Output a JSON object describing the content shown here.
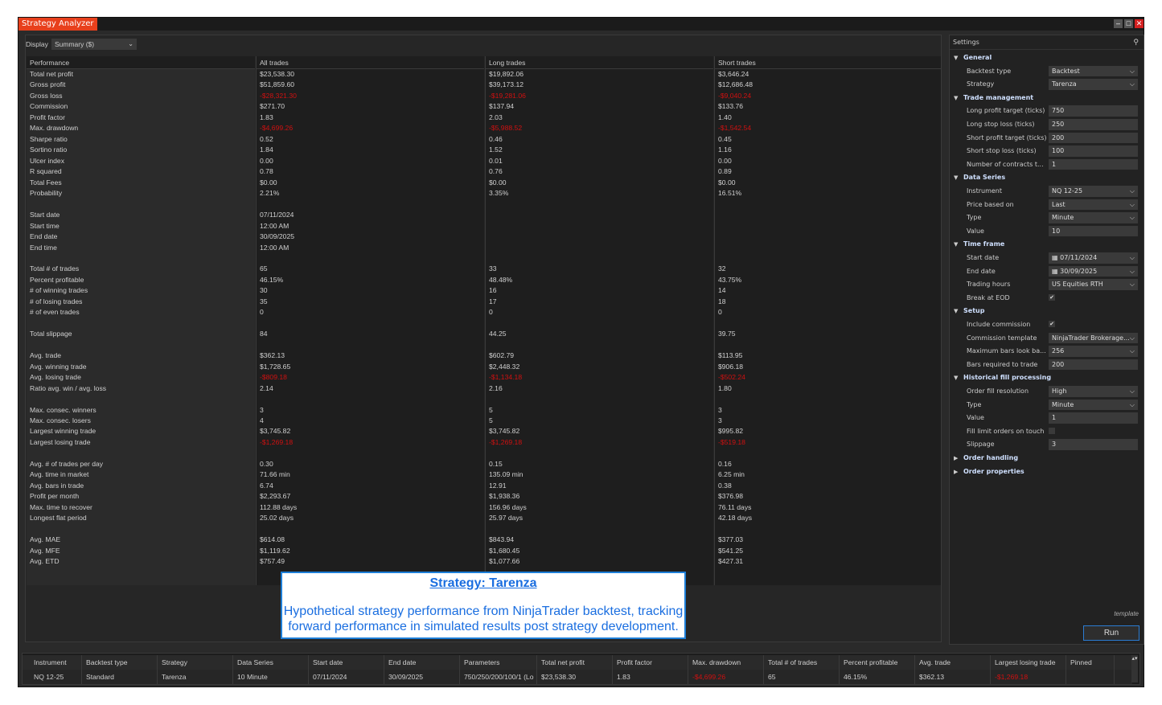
{
  "window": {
    "title": "Strategy Analyzer",
    "controls": [
      "minimize",
      "maximize",
      "close"
    ]
  },
  "display": {
    "label": "Display",
    "value": "Summary ($)"
  },
  "performance": {
    "headers": [
      "Performance",
      "All trades",
      "Long trades",
      "Short trades"
    ],
    "rows": [
      [
        "Total net profit",
        "$23,538.30",
        "$19,892.06",
        "$3,646.24"
      ],
      [
        "Gross profit",
        "$51,859.60",
        "$39,173.12",
        "$12,686.48"
      ],
      [
        "Gross loss",
        "-$28,321.30",
        "-$19,281.06",
        "-$9,040.24"
      ],
      [
        "Commission",
        "$271.70",
        "$137.94",
        "$133.76"
      ],
      [
        "Profit factor",
        "1.83",
        "2.03",
        "1.40"
      ],
      [
        "Max. drawdown",
        "-$4,699.26",
        "-$5,988.52",
        "-$1,542.54"
      ],
      [
        "Sharpe ratio",
        "0.52",
        "0.46",
        "0.45"
      ],
      [
        "Sortino ratio",
        "1.84",
        "1.52",
        "1.16"
      ],
      [
        "Ulcer index",
        "0.00",
        "0.01",
        "0.00"
      ],
      [
        "R squared",
        "0.78",
        "0.76",
        "0.89"
      ],
      [
        "Total Fees",
        "$0.00",
        "$0.00",
        "$0.00"
      ],
      [
        "Probability",
        "2.21%",
        "3.35%",
        "16.51%"
      ],
      [
        "",
        "",
        "",
        ""
      ],
      [
        "Start date",
        "07/11/2024",
        "",
        ""
      ],
      [
        "Start time",
        "12:00 AM",
        "",
        ""
      ],
      [
        "End date",
        "30/09/2025",
        "",
        ""
      ],
      [
        "End time",
        "12:00 AM",
        "",
        ""
      ],
      [
        "",
        "",
        "",
        ""
      ],
      [
        "Total # of trades",
        "65",
        "33",
        "32"
      ],
      [
        "Percent profitable",
        "46.15%",
        "48.48%",
        "43.75%"
      ],
      [
        "# of winning trades",
        "30",
        "16",
        "14"
      ],
      [
        "# of losing trades",
        "35",
        "17",
        "18"
      ],
      [
        "# of even trades",
        "0",
        "0",
        "0"
      ],
      [
        "",
        "",
        "",
        ""
      ],
      [
        "Total slippage",
        "84",
        "44.25",
        "39.75"
      ],
      [
        "",
        "",
        "",
        ""
      ],
      [
        "Avg. trade",
        "$362.13",
        "$602.79",
        "$113.95"
      ],
      [
        "Avg. winning trade",
        "$1,728.65",
        "$2,448.32",
        "$906.18"
      ],
      [
        "Avg. losing trade",
        "-$809.18",
        "-$1,134.18",
        "-$502.24"
      ],
      [
        "Ratio avg. win / avg. loss",
        "2.14",
        "2.16",
        "1.80"
      ],
      [
        "",
        "",
        "",
        ""
      ],
      [
        "Max. consec. winners",
        "3",
        "5",
        "3"
      ],
      [
        "Max. consec. losers",
        "4",
        "5",
        "3"
      ],
      [
        "Largest winning trade",
        "$3,745.82",
        "$3,745.82",
        "$995.82"
      ],
      [
        "Largest losing trade",
        "-$1,269.18",
        "-$1,269.18",
        "-$519.18"
      ],
      [
        "",
        "",
        "",
        ""
      ],
      [
        "Avg. # of trades per day",
        "0.30",
        "0.15",
        "0.16"
      ],
      [
        "Avg. time in market",
        "71.66 min",
        "135.09 min",
        "6.25 min"
      ],
      [
        "Avg. bars in trade",
        "6.74",
        "12.91",
        "0.38"
      ],
      [
        "Profit per month",
        "$2,293.67",
        "$1,938.36",
        "$376.98"
      ],
      [
        "Max. time to recover",
        "112.88 days",
        "156.96 days",
        "76.11 days"
      ],
      [
        "Longest flat period",
        "25.02 days",
        "25.97 days",
        "42.18 days"
      ],
      [
        "",
        "",
        "",
        ""
      ],
      [
        "Avg. MAE",
        "$614.08",
        "$843.94",
        "$377.03"
      ],
      [
        "Avg. MFE",
        "$1,119.62",
        "$1,680.45",
        "$541.25"
      ],
      [
        "Avg. ETD",
        "$757.49",
        "$1,077.66",
        "$427.31"
      ]
    ]
  },
  "note": {
    "title": "Strategy: Tarenza",
    "body": "Hypothetical strategy performance from NinjaTrader backtest, tracking forward performance in simulated results post strategy development."
  },
  "settings": {
    "title": "Settings",
    "items": [
      {
        "kind": "category",
        "label": "General",
        "expanded": true
      },
      {
        "kind": "select",
        "label": "Backtest type",
        "value": "Backtest"
      },
      {
        "kind": "select",
        "label": "Strategy",
        "value": "Tarenza"
      },
      {
        "kind": "category",
        "label": "Trade management",
        "expanded": true
      },
      {
        "kind": "text",
        "label": "Long profit target (ticks)",
        "value": "750"
      },
      {
        "kind": "text",
        "label": "Long stop loss (ticks)",
        "value": "250"
      },
      {
        "kind": "text",
        "label": "Short profit target (ticks)",
        "value": "200"
      },
      {
        "kind": "text",
        "label": "Short stop loss (ticks)",
        "value": "100"
      },
      {
        "kind": "text",
        "label": "Number of contracts t...",
        "value": "1"
      },
      {
        "kind": "category",
        "label": "Data Series",
        "expanded": true
      },
      {
        "kind": "select",
        "label": "Instrument",
        "value": "NQ 12-25"
      },
      {
        "kind": "select",
        "label": "Price based on",
        "value": "Last"
      },
      {
        "kind": "select",
        "label": "Type",
        "value": "Minute"
      },
      {
        "kind": "text",
        "label": "Value",
        "value": "10"
      },
      {
        "kind": "category",
        "label": "Time frame",
        "expanded": true
      },
      {
        "kind": "date",
        "label": "Start date",
        "value": "07/11/2024"
      },
      {
        "kind": "date",
        "label": "End date",
        "value": "30/09/2025"
      },
      {
        "kind": "select",
        "label": "Trading hours",
        "value": "US Equities RTH"
      },
      {
        "kind": "check",
        "label": "Break at EOD",
        "checked": true
      },
      {
        "kind": "category",
        "label": "Setup",
        "expanded": true
      },
      {
        "kind": "check",
        "label": "Include commission",
        "checked": true
      },
      {
        "kind": "select",
        "label": "Commission template",
        "value": "NinjaTrader Brokerage..."
      },
      {
        "kind": "select",
        "label": "Maximum bars look ba...",
        "value": "256"
      },
      {
        "kind": "text",
        "label": "Bars required to trade",
        "value": "200"
      },
      {
        "kind": "category",
        "label": "Historical fill processing",
        "expanded": true
      },
      {
        "kind": "select",
        "label": "Order fill resolution",
        "value": "High"
      },
      {
        "kind": "select",
        "label": "Type",
        "value": "Minute"
      },
      {
        "kind": "text",
        "label": "Value",
        "value": "1"
      },
      {
        "kind": "check",
        "label": "Fill limit orders on touch",
        "checked": false
      },
      {
        "kind": "text",
        "label": "Slippage",
        "value": "3"
      },
      {
        "kind": "category",
        "label": "Order handling",
        "expanded": false
      },
      {
        "kind": "category",
        "label": "Order properties",
        "expanded": false
      }
    ],
    "template_label": "template",
    "run_label": "Run"
  },
  "results_grid": {
    "headers": [
      "Instrument",
      "Backtest type",
      "Strategy",
      "Data Series",
      "Start date",
      "End date",
      "Parameters",
      "Total net profit",
      "Profit factor",
      "Max. drawdown",
      "Total # of trades",
      "Percent profitable",
      "Avg. trade",
      "Largest losing trade",
      "Pinned"
    ],
    "rows": [
      [
        "NQ 12-25",
        "Standard",
        "Tarenza",
        "10 Minute",
        "07/11/2024",
        "30/09/2025",
        "750/250/200/100/1 (Lo",
        "$23,538.30",
        "1.83",
        "-$4,699.26",
        "65",
        "46.15%",
        "$362.13",
        "-$1,269.18",
        ""
      ]
    ]
  },
  "colors": {
    "accent": "#e8401c",
    "negative": "#d01010",
    "note_blue": "#1a6ee0",
    "run_border": "#2b7cd3"
  }
}
